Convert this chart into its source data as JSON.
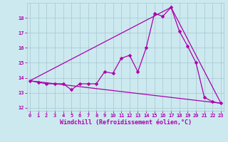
{
  "xlabel": "Windchill (Refroidissement éolien,°C)",
  "background_color": "#cde9f0",
  "grid_color": "#aaccd4",
  "line_color": "#aa00aa",
  "x_ticks": [
    0,
    1,
    2,
    3,
    4,
    5,
    6,
    7,
    8,
    9,
    10,
    11,
    12,
    13,
    14,
    15,
    16,
    17,
    18,
    19,
    20,
    21,
    22,
    23
  ],
  "y_ticks": [
    12,
    13,
    14,
    15,
    16,
    17,
    18
  ],
  "xlim": [
    -0.3,
    23.3
  ],
  "ylim": [
    11.8,
    19.0
  ],
  "series_main": {
    "x": [
      0,
      1,
      2,
      3,
      4,
      5,
      6,
      7,
      8,
      9,
      10,
      11,
      12,
      13,
      14,
      15,
      16,
      17,
      18,
      19,
      20,
      21,
      22,
      23
    ],
    "y": [
      13.8,
      13.7,
      13.6,
      13.6,
      13.6,
      13.2,
      13.6,
      13.6,
      13.6,
      14.4,
      14.3,
      15.3,
      15.5,
      14.4,
      16.0,
      18.3,
      18.1,
      18.7,
      17.1,
      16.1,
      15.0,
      12.7,
      12.4,
      12.3
    ]
  },
  "series_straight": {
    "x": [
      0,
      23
    ],
    "y": [
      13.8,
      12.3
    ]
  },
  "series_triangle": {
    "x": [
      0,
      17,
      23
    ],
    "y": [
      13.8,
      18.7,
      12.3
    ]
  },
  "markersize": 2.5,
  "linewidth": 0.9,
  "tick_fontsize": 5.0,
  "label_fontsize": 6.0
}
